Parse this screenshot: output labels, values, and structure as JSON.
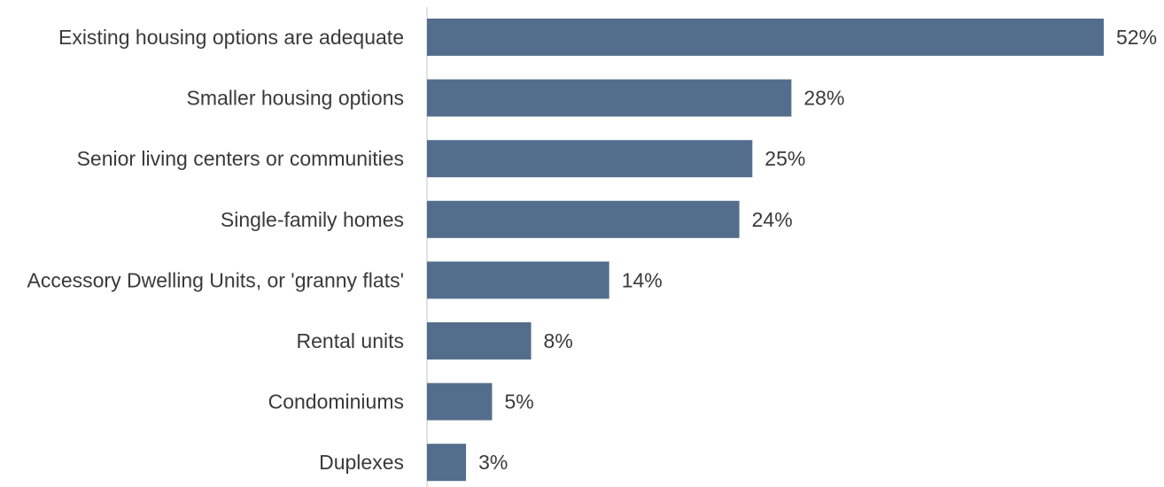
{
  "chart_data": {
    "type": "bar",
    "orientation": "horizontal",
    "title": "",
    "xlabel": "",
    "ylabel": "",
    "categories": [
      "Existing housing options are adequate",
      "Smaller housing options",
      "Senior living centers or communities",
      "Single-family homes",
      "Accessory Dwelling Units, or 'granny flats'",
      "Rental units",
      "Condominiums",
      "Duplexes"
    ],
    "values": [
      52,
      28,
      25,
      24,
      14,
      8,
      5,
      3
    ],
    "value_labels": [
      "52%",
      "28%",
      "25%",
      "24%",
      "14%",
      "8%",
      "5%",
      "3%"
    ],
    "unit": "%",
    "xlim": [
      0,
      52
    ],
    "grid": false,
    "legend": "none",
    "bar_color": "#536d8d",
    "axis_color": "#d9d9d9",
    "text_color": "#3a3a3a"
  }
}
